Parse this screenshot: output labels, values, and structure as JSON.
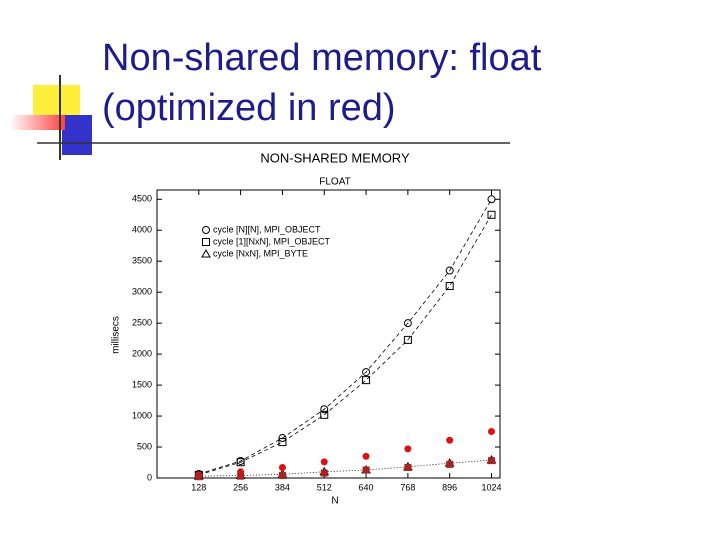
{
  "slide": {
    "title_lines": [
      "Non-shared memory: float",
      "(optimized in red)"
    ]
  },
  "chart_data": {
    "type": "scatter",
    "title": "NON-SHARED MEMORY",
    "subtitle": "FLOAT",
    "x_label": "N",
    "y_label": "millisecs",
    "x": [
      128,
      256,
      384,
      512,
      640,
      768,
      896,
      1024
    ],
    "xlim": [
      0,
      1050
    ],
    "xticks": [
      128,
      256,
      384,
      512,
      640,
      768,
      896,
      1024
    ],
    "ylim": [
      0,
      4650
    ],
    "yticks": [
      0,
      500,
      1000,
      1500,
      2000,
      2500,
      3000,
      3500,
      4000,
      4500
    ],
    "series": [
      {
        "name": "cycle [N][N], MPI_OBJECT",
        "color": "#000000",
        "marker": "circle",
        "line_style": "dashed",
        "values": [
          65,
          275,
          645,
          1110,
          1710,
          2500,
          3350,
          4500
        ]
      },
      {
        "name": "cycle [1][NxN], MPI_OBJECT",
        "color": "#000000",
        "marker": "square",
        "line_style": "dashed",
        "values": [
          50,
          255,
          580,
          1020,
          1580,
          2230,
          3100,
          4250
        ]
      },
      {
        "name": "cycle [NxN], MPI_BYTE",
        "color": "#000000",
        "marker": "triangle",
        "line_style": "dotted",
        "values": [
          30,
          40,
          60,
          100,
          130,
          180,
          240,
          290
        ]
      },
      {
        "color": "#dd1111",
        "marker": "dot",
        "values": [
          50,
          100,
          170,
          260,
          350,
          470,
          610,
          750
        ]
      },
      {
        "color": "#aa2222",
        "marker": "filled-square",
        "values": [
          20,
          30,
          40,
          80,
          130,
          170,
          220,
          280
        ]
      }
    ]
  }
}
